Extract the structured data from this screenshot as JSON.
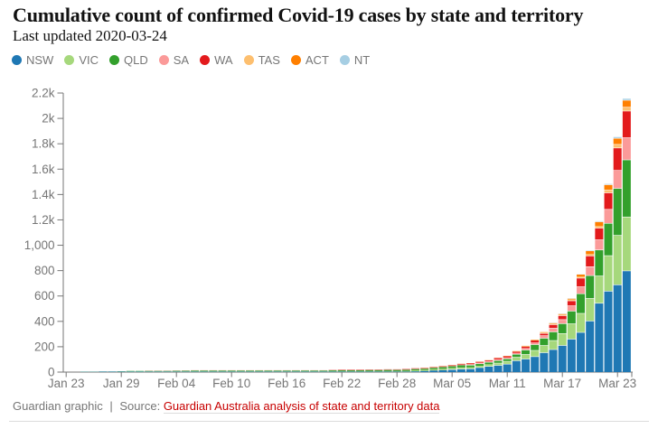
{
  "header": {
    "title": "Cumulative count of confirmed Covid-19 cases by state and territory",
    "subtitle": "Last updated 2020-03-24"
  },
  "footer": {
    "credit": "Guardian graphic",
    "separator": "|",
    "source_prefix": "Source:",
    "source_link": "Guardian Australia analysis of state and territory data"
  },
  "colors": {
    "title_text": "#121212",
    "muted_text": "#767676",
    "axis": "#767676",
    "link_red": "#c70000",
    "rule": "#dcdcdc"
  },
  "chart_data": {
    "type": "bar",
    "stacked": true,
    "grid": false,
    "legend_position": "top",
    "ylim": [
      0,
      2200
    ],
    "yticks": [
      {
        "value": 0,
        "label": "0"
      },
      {
        "value": 200,
        "label": "200"
      },
      {
        "value": 400,
        "label": "400"
      },
      {
        "value": 600,
        "label": "600"
      },
      {
        "value": 800,
        "label": "800"
      },
      {
        "value": 1000,
        "label": "1,000"
      },
      {
        "value": 1200,
        "label": "1.2k"
      },
      {
        "value": 1400,
        "label": "1.4k"
      },
      {
        "value": 1600,
        "label": "1.6k"
      },
      {
        "value": 1800,
        "label": "1.8k"
      },
      {
        "value": 2000,
        "label": "2k"
      },
      {
        "value": 2200,
        "label": "2.2k"
      }
    ],
    "xticks": [
      {
        "index": 0,
        "label": "Jan 23"
      },
      {
        "index": 6,
        "label": "Jan 29"
      },
      {
        "index": 12,
        "label": "Feb 04"
      },
      {
        "index": 18,
        "label": "Feb 10"
      },
      {
        "index": 24,
        "label": "Feb 16"
      },
      {
        "index": 30,
        "label": "Feb 22"
      },
      {
        "index": 36,
        "label": "Feb 28"
      },
      {
        "index": 42,
        "label": "Mar 05"
      },
      {
        "index": 48,
        "label": "Mar 11"
      },
      {
        "index": 54,
        "label": "Mar 17"
      },
      {
        "index": 60,
        "label": "Mar 23"
      }
    ],
    "x": [
      "Jan 23",
      "Jan 24",
      "Jan 25",
      "Jan 26",
      "Jan 27",
      "Jan 28",
      "Jan 29",
      "Jan 30",
      "Jan 31",
      "Feb 01",
      "Feb 02",
      "Feb 03",
      "Feb 04",
      "Feb 05",
      "Feb 06",
      "Feb 07",
      "Feb 08",
      "Feb 09",
      "Feb 10",
      "Feb 11",
      "Feb 12",
      "Feb 13",
      "Feb 14",
      "Feb 15",
      "Feb 16",
      "Feb 17",
      "Feb 18",
      "Feb 19",
      "Feb 20",
      "Feb 21",
      "Feb 22",
      "Feb 23",
      "Feb 24",
      "Feb 25",
      "Feb 26",
      "Feb 27",
      "Feb 28",
      "Feb 29",
      "Mar 01",
      "Mar 02",
      "Mar 03",
      "Mar 04",
      "Mar 05",
      "Mar 06",
      "Mar 07",
      "Mar 08",
      "Mar 09",
      "Mar 10",
      "Mar 11",
      "Mar 12",
      "Mar 13",
      "Mar 14",
      "Mar 15",
      "Mar 16",
      "Mar 17",
      "Mar 18",
      "Mar 19",
      "Mar 20",
      "Mar 21",
      "Mar 22",
      "Mar 23",
      "Mar 24"
    ],
    "series": [
      {
        "name": "NSW",
        "color": "#1f78b4",
        "values": [
          0,
          0,
          3,
          3,
          4,
          4,
          4,
          4,
          4,
          4,
          4,
          4,
          4,
          4,
          4,
          4,
          4,
          4,
          4,
          4,
          4,
          4,
          4,
          4,
          4,
          4,
          4,
          4,
          4,
          4,
          4,
          4,
          4,
          4,
          4,
          4,
          4,
          4,
          6,
          9,
          13,
          16,
          22,
          26,
          28,
          38,
          47,
          55,
          65,
          92,
          105,
          124,
          155,
          180,
          212,
          262,
          315,
          405,
          545,
          640,
          690,
          800
        ]
      },
      {
        "name": "VIC",
        "color": "#a6d87c",
        "values": [
          0,
          0,
          1,
          1,
          1,
          1,
          2,
          3,
          3,
          4,
          4,
          4,
          4,
          4,
          4,
          4,
          4,
          4,
          4,
          4,
          4,
          4,
          4,
          4,
          4,
          4,
          4,
          4,
          4,
          4,
          4,
          4,
          4,
          4,
          4,
          4,
          4,
          5,
          9,
          9,
          10,
          11,
          11,
          11,
          11,
          12,
          15,
          18,
          22,
          27,
          36,
          49,
          57,
          71,
          94,
          121,
          150,
          178,
          215,
          280,
          390,
          425
        ]
      },
      {
        "name": "QLD",
        "color": "#33a02c",
        "values": [
          0,
          0,
          0,
          0,
          0,
          0,
          1,
          2,
          2,
          2,
          2,
          2,
          3,
          4,
          5,
          5,
          5,
          5,
          5,
          5,
          5,
          5,
          5,
          5,
          5,
          5,
          5,
          5,
          5,
          6,
          7,
          7,
          7,
          8,
          8,
          9,
          9,
          9,
          9,
          9,
          11,
          13,
          13,
          17,
          18,
          18,
          18,
          20,
          20,
          24,
          35,
          46,
          57,
          68,
          78,
          100,
          155,
          180,
          205,
          255,
          370,
          450
        ]
      },
      {
        "name": "SA",
        "color": "#fb9a99",
        "values": [
          0,
          0,
          0,
          0,
          0,
          0,
          0,
          0,
          0,
          2,
          2,
          2,
          2,
          2,
          2,
          2,
          2,
          2,
          2,
          2,
          2,
          2,
          2,
          2,
          2,
          2,
          2,
          2,
          2,
          2,
          3,
          3,
          3,
          3,
          3,
          3,
          3,
          3,
          3,
          3,
          4,
          5,
          5,
          7,
          7,
          7,
          7,
          9,
          9,
          9,
          14,
          16,
          20,
          29,
          32,
          42,
          55,
          70,
          80,
          110,
          142,
          175
        ]
      },
      {
        "name": "WA",
        "color": "#e31a1c",
        "values": [
          0,
          0,
          0,
          0,
          0,
          0,
          0,
          0,
          0,
          0,
          0,
          0,
          0,
          0,
          0,
          0,
          0,
          0,
          0,
          0,
          0,
          0,
          0,
          0,
          0,
          0,
          0,
          0,
          0,
          1,
          2,
          2,
          2,
          2,
          2,
          2,
          2,
          3,
          3,
          3,
          3,
          3,
          4,
          4,
          6,
          6,
          6,
          9,
          9,
          9,
          11,
          14,
          18,
          28,
          31,
          39,
          68,
          85,
          92,
          130,
          177,
          210
        ]
      },
      {
        "name": "TAS",
        "color": "#fdbf6f",
        "values": [
          0,
          0,
          0,
          0,
          0,
          0,
          0,
          0,
          0,
          0,
          0,
          0,
          0,
          0,
          0,
          0,
          0,
          0,
          0,
          0,
          0,
          0,
          0,
          0,
          0,
          0,
          0,
          0,
          0,
          0,
          0,
          0,
          0,
          0,
          0,
          0,
          0,
          0,
          0,
          1,
          1,
          1,
          1,
          1,
          1,
          2,
          2,
          2,
          2,
          3,
          5,
          5,
          6,
          7,
          7,
          10,
          10,
          14,
          15,
          22,
          28,
          30
        ]
      },
      {
        "name": "ACT",
        "color": "#ff7f00",
        "values": [
          0,
          0,
          0,
          0,
          0,
          0,
          0,
          0,
          0,
          0,
          0,
          0,
          0,
          0,
          0,
          0,
          0,
          0,
          0,
          0,
          0,
          0,
          0,
          0,
          0,
          0,
          0,
          0,
          0,
          0,
          0,
          0,
          0,
          0,
          0,
          0,
          0,
          0,
          0,
          0,
          0,
          0,
          0,
          0,
          0,
          0,
          0,
          0,
          1,
          1,
          1,
          2,
          2,
          3,
          4,
          5,
          16,
          26,
          35,
          42,
          48,
          55
        ]
      },
      {
        "name": "NT",
        "color": "#a6cee3",
        "values": [
          0,
          0,
          0,
          0,
          0,
          0,
          0,
          0,
          0,
          0,
          0,
          0,
          0,
          0,
          0,
          0,
          0,
          0,
          0,
          0,
          0,
          0,
          0,
          0,
          0,
          0,
          0,
          0,
          0,
          0,
          0,
          0,
          0,
          0,
          0,
          0,
          0,
          0,
          0,
          0,
          0,
          0,
          0,
          0,
          0,
          0,
          0,
          0,
          0,
          0,
          0,
          0,
          0,
          1,
          1,
          1,
          1,
          3,
          3,
          4,
          8,
          10
        ]
      }
    ]
  }
}
